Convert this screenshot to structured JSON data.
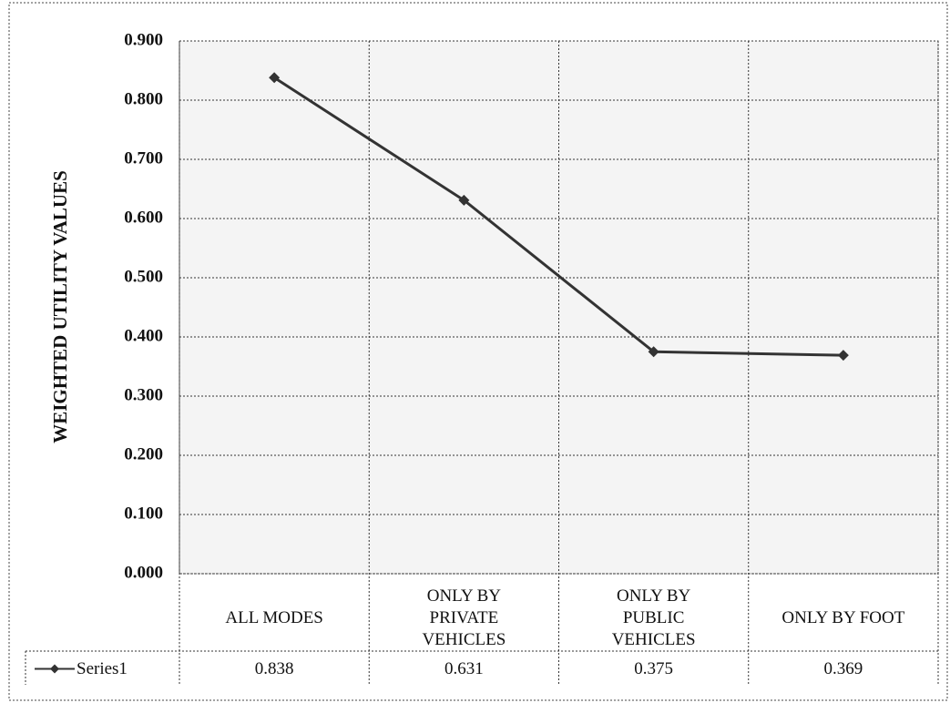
{
  "chart_data": {
    "type": "line",
    "y_label": "WEIGHTED UTILITY VALUES",
    "categories": [
      "ALL MODES",
      "ONLY BY PRIVATE VEHICLES",
      "ONLY BY PUBLIC VEHICLES",
      "ONLY BY FOOT"
    ],
    "series": [
      {
        "name": "Series1",
        "color": "#333333",
        "values": [
          0.838,
          0.631,
          0.375,
          0.369
        ]
      }
    ],
    "ylim": [
      0,
      0.9
    ],
    "yticks": [
      {
        "value": 0,
        "label": "0.000"
      },
      {
        "value": 0.1,
        "label": "0.100"
      },
      {
        "value": 0.2,
        "label": "0.200"
      },
      {
        "value": 0.3,
        "label": "0.300"
      },
      {
        "value": 0.4,
        "label": "0.400"
      },
      {
        "value": 0.5,
        "label": "0.500"
      },
      {
        "value": 0.6,
        "label": "0.600"
      },
      {
        "value": 0.7,
        "label": "0.700"
      },
      {
        "value": 0.8,
        "label": "0.800"
      },
      {
        "value": 0.9,
        "label": "0.900"
      }
    ],
    "grid": true,
    "data_table": true
  }
}
